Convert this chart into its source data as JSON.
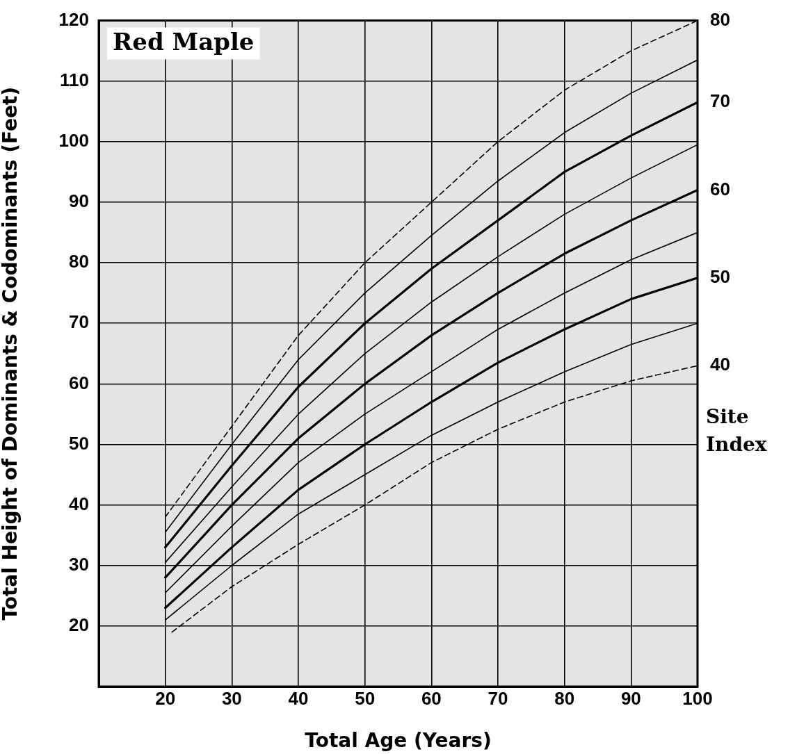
{
  "chart_data": {
    "type": "line",
    "title": "Red Maple",
    "xlabel": "Total Age (Years)",
    "ylabel": "Total Height of Dominants & Codominants (Feet)",
    "xlim": [
      10,
      100
    ],
    "xticks": [
      20,
      30,
      40,
      50,
      60,
      70,
      80,
      90,
      100
    ],
    "ylim": [
      10,
      120
    ],
    "yticks": [
      20,
      30,
      40,
      50,
      60,
      70,
      80,
      90,
      100,
      110,
      120
    ],
    "grid": true,
    "legend": false,
    "marker": "none",
    "annotations": [
      "Site Index"
    ],
    "x": [
      20,
      30,
      40,
      50,
      60,
      70,
      80,
      90,
      100
    ],
    "series": [
      {
        "name": "80",
        "color": "#000000",
        "line_style": "dashed",
        "values": [
          38,
          53,
          68,
          80,
          90,
          100,
          108.5,
          115,
          120
        ]
      },
      {
        "color": "#000000",
        "values": [
          35.5,
          50,
          64,
          75,
          84.5,
          93.5,
          101.5,
          108,
          113.5
        ]
      },
      {
        "name": "70",
        "color": "#000000",
        "values": [
          33,
          46.5,
          59.5,
          70,
          79,
          87,
          95,
          101,
          106.5
        ]
      },
      {
        "color": "#000000",
        "values": [
          30.5,
          43,
          55,
          65,
          73.5,
          81,
          88,
          94,
          99.5
        ]
      },
      {
        "name": "60",
        "color": "#000000",
        "values": [
          28,
          40,
          51,
          60,
          68,
          75,
          81.5,
          87,
          92
        ]
      },
      {
        "color": "#000000",
        "values": [
          25.5,
          36.5,
          47,
          55,
          62,
          69,
          75,
          80.5,
          85
        ]
      },
      {
        "name": "50",
        "color": "#000000",
        "values": [
          23,
          33,
          42.5,
          50,
          57,
          63.5,
          69,
          74,
          77.5
        ]
      },
      {
        "color": "#000000",
        "values": [
          21,
          30,
          38.5,
          45,
          51.5,
          57,
          62,
          66.5,
          70
        ]
      },
      {
        "name": "40",
        "color": "#000000",
        "line_style": "dashed",
        "x": [
          21,
          30,
          40,
          50,
          60,
          70,
          80,
          90,
          100
        ],
        "values": [
          19,
          26.5,
          33.5,
          40,
          47,
          52.5,
          57,
          60.5,
          63
        ]
      }
    ]
  }
}
